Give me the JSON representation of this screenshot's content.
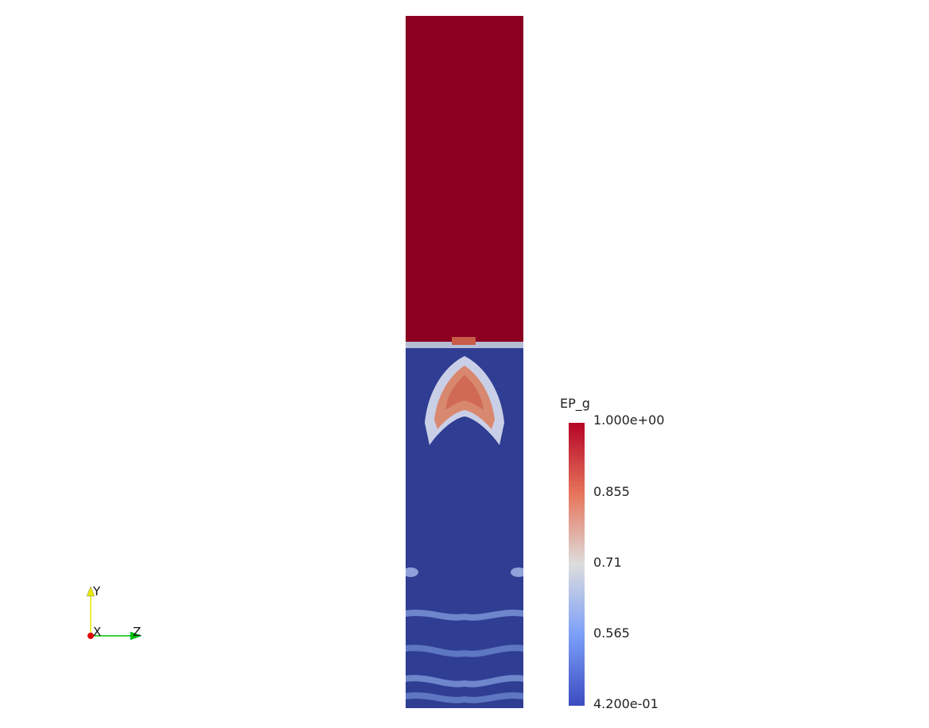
{
  "colorbar": {
    "title": "EP_g",
    "labels": {
      "max": "1.000e+00",
      "q3": "0.855",
      "mid": "0.71",
      "q1": "0.565",
      "min": "4.200e-01"
    },
    "colors": {
      "high": "#b40426",
      "upper": "#e7745b",
      "center": "#dddddd",
      "lower": "#7b9ff9",
      "low": "#3b4cc0"
    }
  },
  "field": {
    "upper_color": "#8b0020",
    "lower_color": "#2f3d92",
    "bubble_color": "#d98870",
    "streak_color": "#4d66b8"
  },
  "orientation_axes": {
    "y_label": "Y",
    "x_label": "X",
    "z_label": "Z",
    "y_color": "#e8e800",
    "x_color": "#e00000",
    "z_color": "#00c000"
  }
}
